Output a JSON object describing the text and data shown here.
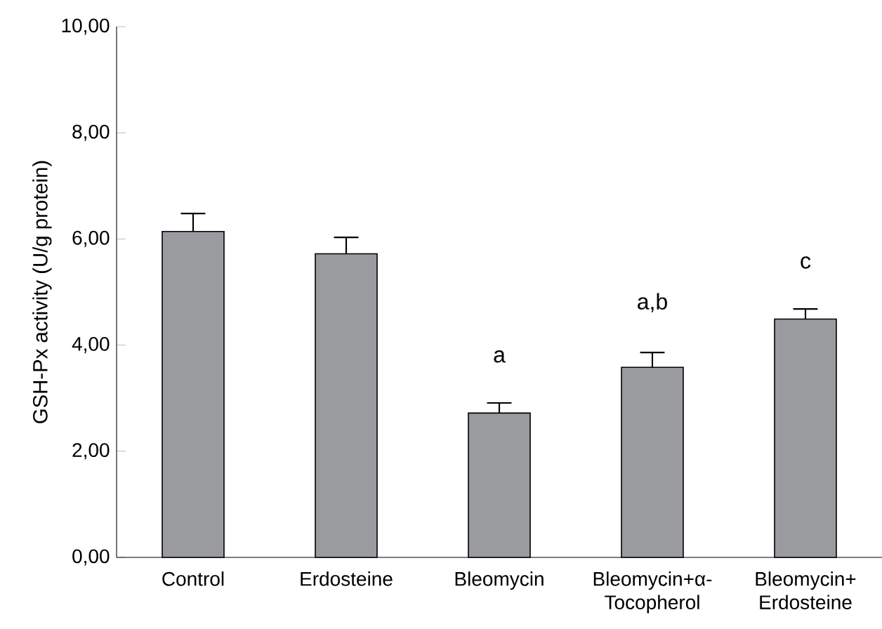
{
  "chart_data": {
    "type": "bar",
    "ylabel": "GSH-Px activity (U/g protein)",
    "categories": [
      "Control",
      "Erdosteine",
      "Bleomycin",
      "Bleomycin+α-Tocopherol",
      "Bleomycin+ Erdosteine"
    ],
    "values": [
      6.14,
      5.72,
      2.72,
      3.58,
      4.49
    ],
    "errors": [
      [
        6.14,
        6.48
      ],
      [
        5.72,
        6.03
      ],
      [
        2.72,
        2.91
      ],
      [
        3.58,
        3.86
      ],
      [
        4.49,
        4.68
      ]
    ],
    "color": "#9a9b9f",
    "ylim": [
      0,
      10
    ],
    "yticks": [
      {
        "value": 0,
        "label": "0,00"
      },
      {
        "value": 2,
        "label": "2,00"
      },
      {
        "value": 4,
        "label": "4,00"
      },
      {
        "value": 6,
        "label": "6,00"
      },
      {
        "value": 8,
        "label": "8,00"
      },
      {
        "value": 10,
        "label": "10,00"
      }
    ],
    "annotations": [
      {
        "text": "a",
        "x": "Bleomycin",
        "y": 2.72
      },
      {
        "text": "a,b",
        "x": "Bleomycin+α-Tocopherol",
        "y": 3.58
      },
      {
        "text": "c",
        "x": "Bleomycin+ Erdosteine",
        "y": 4.49
      }
    ],
    "grid": false
  }
}
